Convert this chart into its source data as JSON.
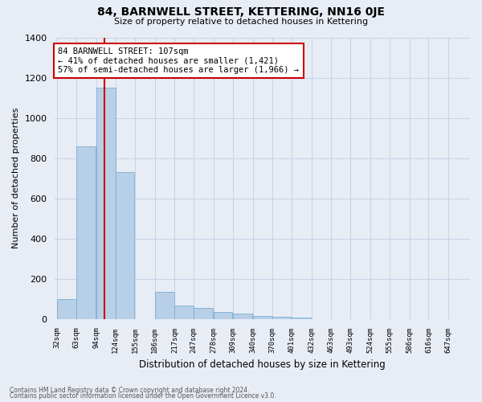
{
  "title": "84, BARNWELL STREET, KETTERING, NN16 0JE",
  "subtitle": "Size of property relative to detached houses in Kettering",
  "xlabel": "Distribution of detached houses by size in Kettering",
  "ylabel": "Number of detached properties",
  "footnote1": "Contains HM Land Registry data © Crown copyright and database right 2024.",
  "footnote2": "Contains public sector information licensed under the Open Government Licence v3.0.",
  "bins": [
    32,
    63,
    94,
    124,
    155,
    186,
    217,
    247,
    278,
    309,
    340,
    370,
    401,
    432,
    463,
    493,
    524,
    555,
    586,
    616,
    647
  ],
  "bar_heights": [
    100,
    860,
    1150,
    730,
    0,
    135,
    65,
    55,
    35,
    25,
    15,
    10,
    5,
    0,
    0,
    0,
    0,
    0,
    0,
    0
  ],
  "bar_color": "#b8cfe8",
  "bar_edge_color": "#7aafd4",
  "grid_color": "#c8d4e8",
  "bg_color": "#e8edf5",
  "property_size": 107,
  "red_line_color": "#cc0000",
  "annotation_text": "84 BARNWELL STREET: 107sqm\n← 41% of detached houses are smaller (1,421)\n57% of semi-detached houses are larger (1,966) →",
  "annotation_box_color": "#ffffff",
  "annotation_border_color": "#cc0000",
  "ylim": [
    0,
    1400
  ],
  "yticks": [
    0,
    200,
    400,
    600,
    800,
    1000,
    1200,
    1400
  ]
}
